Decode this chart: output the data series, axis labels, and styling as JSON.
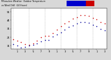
{
  "title": "Milwaukee Weather  Outdoor Temperature",
  "subtitle": "vs Wind Chill",
  "subtitle2": "(24 Hours)",
  "bg_color": "#d8d8d8",
  "plot_bg": "#ffffff",
  "legend_blue_color": "#0000cc",
  "legend_red_color": "#cc0000",
  "ylim": [
    10,
    58
  ],
  "yticks": [
    14,
    24,
    34,
    44,
    54
  ],
  "temp_data": [
    [
      0,
      22
    ],
    [
      1,
      20
    ],
    [
      2,
      18
    ],
    [
      3,
      16
    ],
    [
      4,
      15
    ],
    [
      5,
      17
    ],
    [
      6,
      20
    ],
    [
      7,
      24
    ],
    [
      8,
      26
    ],
    [
      9,
      26
    ],
    [
      10,
      29
    ],
    [
      11,
      33
    ],
    [
      12,
      37
    ],
    [
      13,
      40
    ],
    [
      14,
      43
    ],
    [
      15,
      46
    ],
    [
      16,
      48
    ],
    [
      17,
      50
    ],
    [
      18,
      50
    ],
    [
      19,
      49
    ],
    [
      20,
      47
    ],
    [
      21,
      45
    ],
    [
      22,
      42
    ],
    [
      23,
      40
    ]
  ],
  "wind_data": [
    [
      0,
      16
    ],
    [
      1,
      14
    ],
    [
      2,
      12
    ],
    [
      3,
      13
    ],
    [
      4,
      14
    ],
    [
      5,
      15
    ],
    [
      6,
      17
    ],
    [
      7,
      19
    ],
    [
      8,
      21
    ],
    [
      9,
      21
    ],
    [
      10,
      25
    ],
    [
      11,
      27
    ],
    [
      12,
      30
    ],
    [
      13,
      33
    ],
    [
      14,
      36
    ],
    [
      15,
      38
    ],
    [
      16,
      40
    ],
    [
      17,
      42
    ],
    [
      18,
      42
    ],
    [
      19,
      41
    ],
    [
      20,
      39
    ],
    [
      21,
      37
    ],
    [
      22,
      34
    ],
    [
      23,
      32
    ]
  ],
  "temp_color": "#cc0000",
  "wind_color": "#000099",
  "dot_size": 1.2,
  "grid_color": "#aaaaaa",
  "grid_positions": [
    0,
    4,
    8,
    12,
    16,
    20,
    24
  ],
  "xlim": [
    -0.5,
    23.5
  ],
  "x_tick_positions": [
    1,
    3,
    5,
    7,
    9,
    11,
    13,
    15,
    17,
    19,
    21,
    23
  ],
  "x_tick_labels": [
    "1",
    "3",
    "5",
    "7",
    "9",
    "1",
    "3",
    "5",
    "7",
    "9",
    "1",
    "3"
  ]
}
